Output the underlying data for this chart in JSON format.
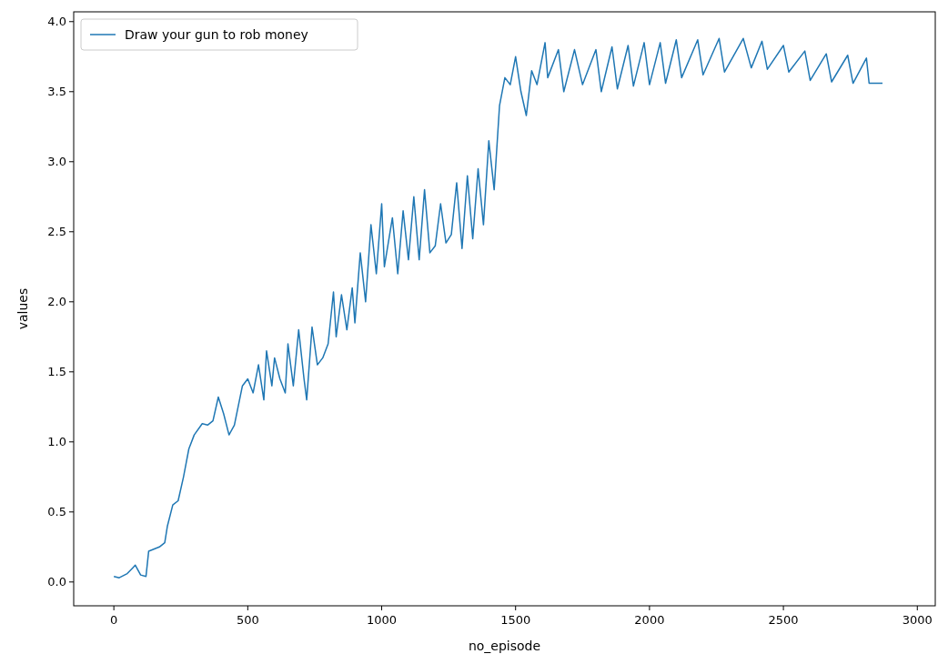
{
  "chart_data": {
    "type": "line",
    "xlabel": "no_episode",
    "ylabel": "values",
    "legend": "top left",
    "xlim": [
      -150,
      3067
    ],
    "ylim": [
      -0.17,
      4.07
    ],
    "xticks": [
      0,
      500,
      1000,
      1500,
      2000,
      2500,
      3000
    ],
    "yticks": [
      {
        "value": 0,
        "label": "0.0"
      },
      {
        "value": 0.5,
        "label": "0.5"
      },
      {
        "value": 1,
        "label": "1.0"
      },
      {
        "value": 1.5,
        "label": "1.5"
      },
      {
        "value": 2,
        "label": "2.0"
      },
      {
        "value": 2.5,
        "label": "2.5"
      },
      {
        "value": 3,
        "label": "3.0"
      },
      {
        "value": 3.5,
        "label": "3.5"
      },
      {
        "value": 4,
        "label": "4.0"
      }
    ],
    "series": [
      {
        "name": "Draw your gun to rob money",
        "color": "#1f77b4",
        "x": [
          0,
          20,
          50,
          70,
          80,
          100,
          120,
          130,
          170,
          190,
          200,
          220,
          240,
          260,
          280,
          300,
          330,
          350,
          370,
          390,
          410,
          430,
          450,
          480,
          500,
          520,
          540,
          560,
          570,
          590,
          600,
          620,
          640,
          650,
          670,
          690,
          710,
          720,
          740,
          760,
          780,
          800,
          820,
          830,
          850,
          870,
          890,
          900,
          920,
          940,
          960,
          980,
          1000,
          1010,
          1040,
          1060,
          1080,
          1100,
          1120,
          1140,
          1160,
          1180,
          1200,
          1220,
          1240,
          1260,
          1280,
          1300,
          1320,
          1340,
          1360,
          1380,
          1400,
          1420,
          1440,
          1460,
          1480,
          1500,
          1520,
          1540,
          1560,
          1580,
          1610,
          1620,
          1660,
          1680,
          1720,
          1750,
          1800,
          1820,
          1860,
          1880,
          1920,
          1940,
          1980,
          2000,
          2040,
          2060,
          2100,
          2120,
          2180,
          2200,
          2260,
          2280,
          2350,
          2380,
          2420,
          2440,
          2500,
          2520,
          2580,
          2600,
          2660,
          2680,
          2740,
          2760,
          2810,
          2820,
          2870
        ],
        "values": [
          0.04,
          0.03,
          0.06,
          0.1,
          0.12,
          0.05,
          0.04,
          0.22,
          0.25,
          0.28,
          0.4,
          0.55,
          0.58,
          0.75,
          0.95,
          1.05,
          1.13,
          1.12,
          1.15,
          1.32,
          1.2,
          1.05,
          1.12,
          1.4,
          1.45,
          1.35,
          1.55,
          1.3,
          1.65,
          1.4,
          1.6,
          1.45,
          1.35,
          1.7,
          1.4,
          1.8,
          1.45,
          1.3,
          1.82,
          1.55,
          1.6,
          1.7,
          2.07,
          1.75,
          2.05,
          1.8,
          2.1,
          1.85,
          2.35,
          2.0,
          2.55,
          2.2,
          2.7,
          2.25,
          2.6,
          2.2,
          2.65,
          2.3,
          2.75,
          2.3,
          2.8,
          2.35,
          2.4,
          2.7,
          2.42,
          2.48,
          2.85,
          2.38,
          2.9,
          2.45,
          2.95,
          2.55,
          3.15,
          2.8,
          3.4,
          3.6,
          3.55,
          3.75,
          3.5,
          3.33,
          3.65,
          3.55,
          3.85,
          3.6,
          3.8,
          3.5,
          3.8,
          3.55,
          3.8,
          3.5,
          3.82,
          3.52,
          3.83,
          3.54,
          3.85,
          3.55,
          3.85,
          3.56,
          3.87,
          3.6,
          3.87,
          3.62,
          3.88,
          3.64,
          3.88,
          3.67,
          3.86,
          3.66,
          3.83,
          3.64,
          3.79,
          3.58,
          3.77,
          3.57,
          3.76,
          3.56,
          3.74,
          3.56,
          3.56
        ]
      }
    ]
  }
}
